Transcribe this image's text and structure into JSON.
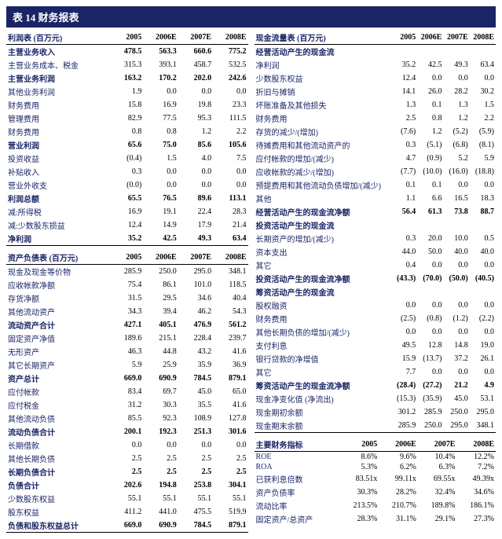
{
  "title": "表 14 财务报表",
  "years": [
    "2005",
    "2006E",
    "2007E",
    "2008E"
  ],
  "income_statement": {
    "header": "利润表 (百万元)",
    "rows": [
      {
        "label": "主营业务收入",
        "v": [
          "478.5",
          "563.3",
          "660.6",
          "775.2"
        ],
        "bold": true
      },
      {
        "label": "主营业务成本、税金",
        "v": [
          "315.3",
          "393.1",
          "458.7",
          "532.5"
        ]
      },
      {
        "label": "主营业务利润",
        "v": [
          "163.2",
          "170.2",
          "202.0",
          "242.6"
        ],
        "bold": true
      },
      {
        "label": "其他业务利润",
        "v": [
          "1.9",
          "0.0",
          "0.0",
          "0.0"
        ]
      },
      {
        "label": "财务费用",
        "v": [
          "15.8",
          "16.9",
          "19.8",
          "23.3"
        ]
      },
      {
        "label": "管理费用",
        "v": [
          "82.9",
          "77.5",
          "95.3",
          "111.5"
        ]
      },
      {
        "label": "财务费用",
        "v": [
          "0.8",
          "0.8",
          "1.2",
          "2.2"
        ]
      },
      {
        "label": "营业利润",
        "v": [
          "65.6",
          "75.0",
          "85.6",
          "105.6"
        ],
        "bold": true
      },
      {
        "label": "投资收益",
        "v": [
          "(0.4)",
          "1.5",
          "4.0",
          "7.5"
        ]
      },
      {
        "label": "补贴收入",
        "v": [
          "0.3",
          "0.0",
          "0.0",
          "0.0"
        ]
      },
      {
        "label": "营业外收支",
        "v": [
          "(0.0)",
          "0.0",
          "0.0",
          "0.0"
        ]
      },
      {
        "label": "利润总额",
        "v": [
          "65.5",
          "76.5",
          "89.6",
          "113.1"
        ],
        "bold": true
      },
      {
        "label": "减:所得税",
        "v": [
          "16.9",
          "19.1",
          "22.4",
          "28.3"
        ]
      },
      {
        "label": "减:少数股东损益",
        "v": [
          "12.4",
          "14.9",
          "17.9",
          "21.4"
        ]
      },
      {
        "label": "净利润",
        "v": [
          "35.2",
          "42.5",
          "49.3",
          "63.4"
        ],
        "bold": true,
        "border": true
      }
    ]
  },
  "balance_sheet": {
    "header": "资产负债表 (百万元)",
    "rows": [
      {
        "label": "现金及现金等价物",
        "v": [
          "285.9",
          "250.0",
          "295.0",
          "348.1"
        ]
      },
      {
        "label": "应收帐款净额",
        "v": [
          "75.4",
          "86.1",
          "101.0",
          "118.5"
        ]
      },
      {
        "label": "存货净额",
        "v": [
          "31.5",
          "29.5",
          "34.6",
          "40.4"
        ]
      },
      {
        "label": "其他流动资产",
        "v": [
          "34.3",
          "39.4",
          "46.2",
          "54.3"
        ]
      },
      {
        "label": "流动资产合计",
        "v": [
          "427.1",
          "405.1",
          "476.9",
          "561.2"
        ],
        "bold": true
      },
      {
        "label": "固定资产净值",
        "v": [
          "189.6",
          "215.1",
          "228.4",
          "239.7"
        ]
      },
      {
        "label": "无形资产",
        "v": [
          "46.3",
          "44.8",
          "43.2",
          "41.6"
        ]
      },
      {
        "label": "其它长期资产",
        "v": [
          "5.9",
          "25.9",
          "35.9",
          "36.9"
        ]
      },
      {
        "label": "资产总计",
        "v": [
          "669.0",
          "690.9",
          "784.5",
          "879.1"
        ],
        "bold": true
      },
      {
        "label": "应付帐款",
        "v": [
          "83.4",
          "69.7",
          "45.0",
          "65.0"
        ]
      },
      {
        "label": "应付税金",
        "v": [
          "31.2",
          "30.3",
          "35.5",
          "41.6"
        ]
      },
      {
        "label": "其他流动负债",
        "v": [
          "85.5",
          "92.3",
          "108.9",
          "127.8"
        ]
      },
      {
        "label": "流动负债合计",
        "v": [
          "200.1",
          "192.3",
          "251.3",
          "301.6"
        ],
        "bold": true
      },
      {
        "label": "长期借款",
        "v": [
          "0.0",
          "0.0",
          "0.0",
          "0.0"
        ]
      },
      {
        "label": "其他长期负债",
        "v": [
          "2.5",
          "2.5",
          "2.5",
          "2.5"
        ]
      },
      {
        "label": "长期负债合计",
        "v": [
          "2.5",
          "2.5",
          "2.5",
          "2.5"
        ],
        "bold": true
      },
      {
        "label": "负债合计",
        "v": [
          "202.6",
          "194.8",
          "253.8",
          "304.1"
        ],
        "bold": true
      },
      {
        "label": "少数股东权益",
        "v": [
          "55.1",
          "55.1",
          "55.1",
          "55.1"
        ]
      },
      {
        "label": "股东权益",
        "v": [
          "411.2",
          "441.0",
          "475.5",
          "519.9"
        ]
      },
      {
        "label": "负债和股东权益总计",
        "v": [
          "669.0",
          "690.9",
          "784.5",
          "879.1"
        ],
        "bold": true,
        "border": true
      }
    ]
  },
  "cash_flow": {
    "header": "现金流量表 (百万元)",
    "rows": [
      {
        "label": "经营活动产生的现金流",
        "v": [
          "",
          "",
          "",
          ""
        ],
        "bold": true
      },
      {
        "label": "净利润",
        "v": [
          "35.2",
          "42.5",
          "49.3",
          "63.4"
        ]
      },
      {
        "label": "少数股东权益",
        "v": [
          "12.4",
          "0.0",
          "0.0",
          "0.0"
        ]
      },
      {
        "label": "折旧与摊销",
        "v": [
          "14.1",
          "26.0",
          "28.2",
          "30.2"
        ]
      },
      {
        "label": "坏账准备及其他损失",
        "v": [
          "1.3",
          "0.1",
          "1.3",
          "1.5"
        ]
      },
      {
        "label": "财务费用",
        "v": [
          "2.5",
          "0.8",
          "1.2",
          "2.2"
        ]
      },
      {
        "label": "存货的减少/(增加)",
        "v": [
          "(7.6)",
          "1.2",
          "(5.2)",
          "(5.9)"
        ]
      },
      {
        "label": "待摊费用和其他流动资产的",
        "v": [
          "0.3",
          "(5.1)",
          "(6.8)",
          "(8.1)"
        ]
      },
      {
        "label": "应付帐款的增加/(减少)",
        "v": [
          "4.7",
          "(0.9)",
          "5.2",
          "5.9"
        ]
      },
      {
        "label": "应收帐款的减少/(增加)",
        "v": [
          "(7.7)",
          "(10.0)",
          "(16.0)",
          "(18.8)"
        ]
      },
      {
        "label": "预提费用和其他流动负债增加/(减少)",
        "v": [
          "0.1",
          "0.1",
          "0.0",
          "0.0"
        ]
      },
      {
        "label": "其他",
        "v": [
          "1.1",
          "6.6",
          "16.5",
          "18.3"
        ]
      },
      {
        "label": "经营活动产生的现金流净额",
        "v": [
          "56.4",
          "61.3",
          "73.8",
          "88.7"
        ],
        "bold": true
      },
      {
        "label": "投资活动产生的现金流",
        "v": [
          "",
          "",
          "",
          ""
        ],
        "bold": true
      },
      {
        "label": "长期资产的增加/(减少)",
        "v": [
          "0.3",
          "20.0",
          "10.0",
          "0.5"
        ]
      },
      {
        "label": "资本支出",
        "v": [
          "44.0",
          "50.0",
          "40.0",
          "40.0"
        ]
      },
      {
        "label": "其它",
        "v": [
          "0.4",
          "0.0",
          "0.0",
          "0.0"
        ]
      },
      {
        "label": "投资活动产生的现金流净额",
        "v": [
          "(43.3)",
          "(70.0)",
          "(50.0)",
          "(40.5)"
        ],
        "bold": true
      },
      {
        "label": "筹资活动产生的现金流",
        "v": [
          "",
          "",
          "",
          ""
        ],
        "bold": true
      },
      {
        "label": "股权融资",
        "v": [
          "0.0",
          "0.0",
          "0.0",
          "0.0"
        ]
      },
      {
        "label": "财务费用",
        "v": [
          "(2.5)",
          "(0.8)",
          "(1.2)",
          "(2.2)"
        ]
      },
      {
        "label": "其他长期负债的增加/(减少)",
        "v": [
          "0.0",
          "0.0",
          "0.0",
          "0.0"
        ]
      },
      {
        "label": "支付利息",
        "v": [
          "49.5",
          "12.8",
          "14.8",
          "19.0"
        ]
      },
      {
        "label": "银行贷款的净增值",
        "v": [
          "15.9",
          "(13.7)",
          "37.2",
          "26.1"
        ]
      },
      {
        "label": "其它",
        "v": [
          "7.7",
          "0.0",
          "0.0",
          "0.0"
        ]
      },
      {
        "label": "筹资活动产生的现金流净额",
        "v": [
          "(28.4)",
          "(27.2)",
          "21.2",
          "4.9"
        ],
        "bold": true
      },
      {
        "label": "现金净变化值 (净流出)",
        "v": [
          "(15.3)",
          "(35.9)",
          "45.0",
          "53.1"
        ]
      },
      {
        "label": "现金期初余额",
        "v": [
          "301.2",
          "285.9",
          "250.0",
          "295.0"
        ]
      },
      {
        "label": "现金期末余额",
        "v": [
          "285.9",
          "250.0",
          "295.0",
          "348.1"
        ],
        "border": true
      }
    ]
  },
  "key_ratios": {
    "header": "主要财务指标",
    "rows": [
      {
        "label": "ROE",
        "v": [
          "8.6%",
          "9.6%",
          "10.4%",
          "12.2%"
        ]
      },
      {
        "label": "ROA",
        "v": [
          "5.3%",
          "6.2%",
          "6.3%",
          "7.2%"
        ]
      },
      {
        "label": "已获利息倍数",
        "v": [
          "83.51x",
          "99.11x",
          "69.55x",
          "49.39x"
        ]
      },
      {
        "label": "资产负债率",
        "v": [
          "30.3%",
          "28.2%",
          "32.4%",
          "34.6%"
        ]
      },
      {
        "label": "流动比率",
        "v": [
          "213.5%",
          "210.7%",
          "189.8%",
          "186.1%"
        ]
      },
      {
        "label": "固定资产/总资产",
        "v": [
          "28.3%",
          "31.1%",
          "29.1%",
          "27.3%"
        ]
      }
    ]
  }
}
